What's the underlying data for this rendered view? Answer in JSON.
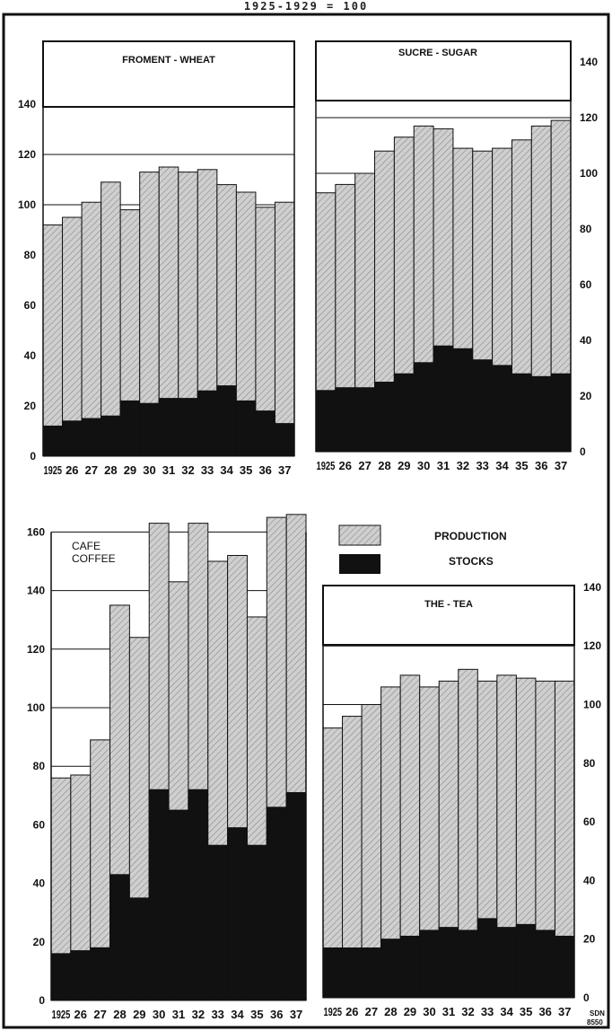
{
  "figure": {
    "caption": "1925-1929 = 100",
    "legend": {
      "production_label": "PRODUCTION",
      "stocks_label": "STOCKS"
    },
    "stamp": [
      "SDN",
      "8550"
    ],
    "colors": {
      "production_fill": "#cfcfcf",
      "hatch": "#8a8a8a",
      "stocks_fill": "#111111",
      "frame": "#111111"
    }
  },
  "chart_data": [
    {
      "type": "bar",
      "title": "FROMENT - WHEAT",
      "categories": [
        "1925",
        "26",
        "27",
        "28",
        "29",
        "30",
        "31",
        "32",
        "33",
        "34",
        "35",
        "36",
        "37"
      ],
      "series": [
        {
          "name": "PRODUCTION",
          "values": [
            92,
            95,
            101,
            109,
            98,
            113,
            115,
            113,
            114,
            108,
            105,
            99,
            101
          ]
        },
        {
          "name": "STOCKS",
          "values": [
            12,
            14,
            15,
            16,
            22,
            21,
            23,
            23,
            26,
            28,
            22,
            18,
            13
          ]
        }
      ],
      "ylim": [
        0,
        140
      ],
      "yticks": [
        0,
        20,
        40,
        60,
        80,
        100,
        120,
        140
      ],
      "axis_side": "left"
    },
    {
      "type": "bar",
      "title": "SUCRE - SUGAR",
      "categories": [
        "1925",
        "26",
        "27",
        "28",
        "29",
        "30",
        "31",
        "32",
        "33",
        "34",
        "35",
        "36",
        "37"
      ],
      "series": [
        {
          "name": "PRODUCTION",
          "values": [
            93,
            96,
            100,
            108,
            113,
            117,
            116,
            109,
            108,
            109,
            112,
            117,
            119
          ]
        },
        {
          "name": "STOCKS",
          "values": [
            22,
            23,
            23,
            25,
            28,
            32,
            38,
            37,
            33,
            31,
            28,
            27,
            28
          ]
        }
      ],
      "ylim": [
        0,
        140
      ],
      "yticks": [
        0,
        20,
        40,
        60,
        80,
        100,
        120,
        140
      ],
      "axis_side": "right"
    },
    {
      "type": "bar",
      "title": "CAFE COFFEE",
      "categories": [
        "1925",
        "26",
        "27",
        "28",
        "29",
        "30",
        "31",
        "32",
        "33",
        "34",
        "35",
        "36",
        "37"
      ],
      "series": [
        {
          "name": "PRODUCTION",
          "values": [
            76,
            77,
            89,
            135,
            124,
            163,
            143,
            163,
            150,
            152,
            131,
            165,
            166
          ]
        },
        {
          "name": "STOCKS",
          "values": [
            16,
            17,
            18,
            43,
            35,
            72,
            65,
            72,
            53,
            59,
            53,
            66,
            71
          ]
        }
      ],
      "ylim": [
        0,
        160
      ],
      "yticks": [
        0,
        20,
        40,
        60,
        80,
        100,
        120,
        140,
        160
      ],
      "axis_side": "left"
    },
    {
      "type": "bar",
      "title": "THE - TEA",
      "categories": [
        "1925",
        "26",
        "27",
        "28",
        "29",
        "30",
        "31",
        "32",
        "33",
        "34",
        "35",
        "36",
        "37"
      ],
      "series": [
        {
          "name": "PRODUCTION",
          "values": [
            92,
            96,
            100,
            106,
            110,
            106,
            108,
            112,
            108,
            110,
            109,
            108,
            108
          ]
        },
        {
          "name": "STOCKS",
          "values": [
            17,
            17,
            17,
            20,
            21,
            23,
            24,
            23,
            27,
            24,
            25,
            23,
            21
          ]
        }
      ],
      "ylim": [
        0,
        140
      ],
      "yticks": [
        0,
        20,
        40,
        60,
        80,
        100,
        120,
        140
      ],
      "axis_side": "right"
    }
  ]
}
